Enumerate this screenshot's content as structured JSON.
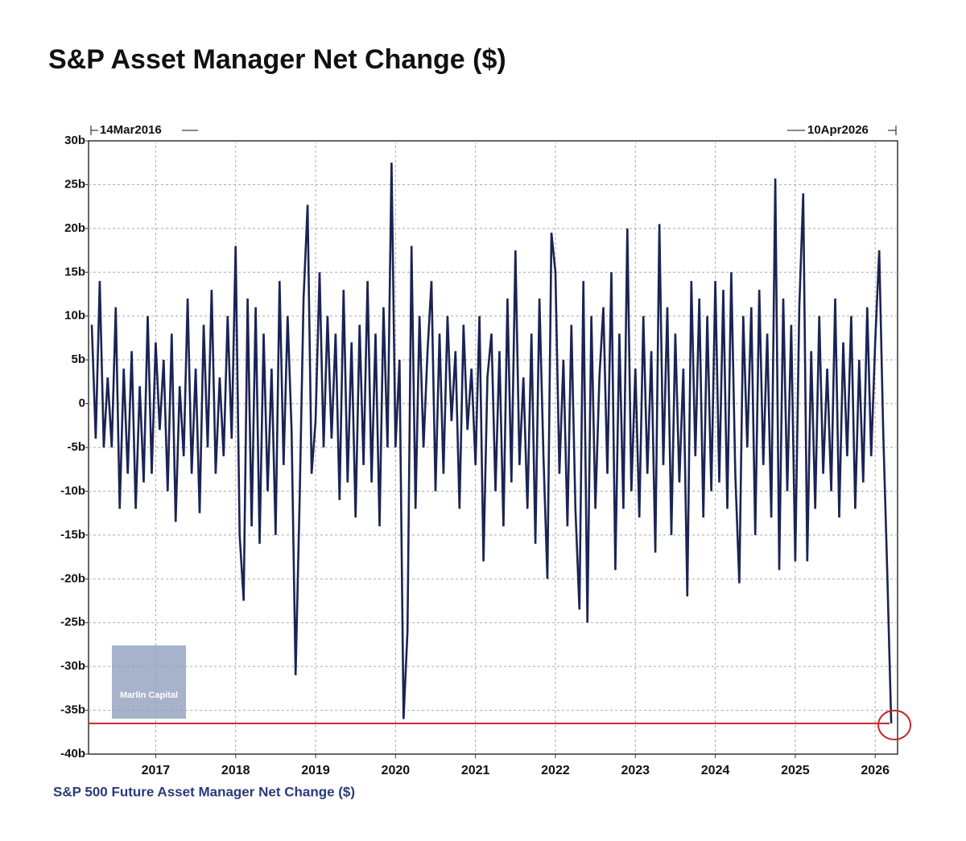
{
  "chart_data": {
    "type": "line",
    "title": "S&P Asset Manager Net Change ($)",
    "start_label": "14Mar2016",
    "end_label": "10Apr2026",
    "footer": "S&P 500 Future Asset Manager Net Change ($)",
    "watermark": "Marlin Capital",
    "color": "#1b2452",
    "reference_line": -36.5,
    "reference_color": "#c0272d",
    "grid": true,
    "xlim": [
      2016.16,
      2026.28
    ],
    "xticks": [
      2017,
      2018,
      2019,
      2020,
      2021,
      2022,
      2023,
      2024,
      2025,
      2026
    ],
    "ylim": [
      -40,
      30
    ],
    "yticks": [
      {
        "value": -40,
        "label": "-40b"
      },
      {
        "value": -35,
        "label": "-35b"
      },
      {
        "value": -30,
        "label": "-30b"
      },
      {
        "value": -25,
        "label": "-25b"
      },
      {
        "value": -20,
        "label": "-20b"
      },
      {
        "value": -15,
        "label": "-15b"
      },
      {
        "value": -10,
        "label": "-10b"
      },
      {
        "value": -5,
        "label": "-5b"
      },
      0,
      {
        "value": 5,
        "label": "5b"
      },
      {
        "value": 10,
        "label": "10b"
      },
      {
        "value": 15,
        "label": "15b"
      },
      {
        "value": 20,
        "label": "20b"
      },
      {
        "value": 25,
        "label": "25b"
      },
      {
        "value": 30,
        "label": "30b"
      }
    ],
    "x": [
      2016.2,
      2016.25,
      2016.3,
      2016.35,
      2016.4,
      2016.45,
      2016.5,
      2016.55,
      2016.6,
      2016.65,
      2016.7,
      2016.75,
      2016.8,
      2016.85,
      2016.9,
      2016.95,
      2017,
      2017.05,
      2017.1,
      2017.15,
      2017.2,
      2017.25,
      2017.3,
      2017.35,
      2017.4,
      2017.45,
      2017.5,
      2017.55,
      2017.6,
      2017.65,
      2017.7,
      2017.75,
      2017.8,
      2017.85,
      2017.9,
      2017.95,
      2018,
      2018.05,
      2018.1,
      2018.15,
      2018.2,
      2018.25,
      2018.3,
      2018.35,
      2018.4,
      2018.45,
      2018.5,
      2018.55,
      2018.6,
      2018.65,
      2018.7,
      2018.75,
      2018.8,
      2018.85,
      2018.9,
      2018.95,
      2019,
      2019.05,
      2019.1,
      2019.15,
      2019.2,
      2019.25,
      2019.3,
      2019.35,
      2019.4,
      2019.45,
      2019.5,
      2019.55,
      2019.6,
      2019.65,
      2019.7,
      2019.75,
      2019.8,
      2019.85,
      2019.9,
      2019.95,
      2020,
      2020.05,
      2020.1,
      2020.15,
      2020.2,
      2020.25,
      2020.3,
      2020.35,
      2020.4,
      2020.45,
      2020.5,
      2020.55,
      2020.6,
      2020.65,
      2020.7,
      2020.75,
      2020.8,
      2020.85,
      2020.9,
      2020.95,
      2021,
      2021.05,
      2021.1,
      2021.15,
      2021.2,
      2021.25,
      2021.3,
      2021.35,
      2021.4,
      2021.45,
      2021.5,
      2021.55,
      2021.6,
      2021.65,
      2021.7,
      2021.75,
      2021.8,
      2021.85,
      2021.9,
      2021.95,
      2022,
      2022.05,
      2022.1,
      2022.15,
      2022.2,
      2022.25,
      2022.3,
      2022.35,
      2022.4,
      2022.45,
      2022.5,
      2022.55,
      2022.6,
      2022.65,
      2022.7,
      2022.75,
      2022.8,
      2022.85,
      2022.9,
      2022.95,
      2023,
      2023.05,
      2023.1,
      2023.15,
      2023.2,
      2023.25,
      2023.3,
      2023.35,
      2023.4,
      2023.45,
      2023.5,
      2023.55,
      2023.6,
      2023.65,
      2023.7,
      2023.75,
      2023.8,
      2023.85,
      2023.9,
      2023.95,
      2024,
      2024.05,
      2024.1,
      2024.15,
      2024.2,
      2024.25,
      2024.3,
      2024.35,
      2024.4,
      2024.45,
      2024.5,
      2024.55,
      2024.6,
      2024.65,
      2024.7,
      2024.75,
      2024.8,
      2024.85,
      2024.9,
      2024.95,
      2025,
      2025.05,
      2025.1,
      2025.15,
      2025.2,
      2025.25,
      2025.3,
      2025.35,
      2025.4,
      2025.45,
      2025.5,
      2025.55,
      2025.6,
      2025.65,
      2025.7,
      2025.75,
      2025.8,
      2025.85,
      2025.9,
      2025.95,
      2026,
      2026.05,
      2026.1,
      2026.15,
      2026.2
    ],
    "values": [
      9,
      -4,
      14,
      -5,
      3,
      -5,
      11,
      -12,
      4,
      -8,
      6,
      -12,
      2,
      -9,
      10,
      -8,
      7,
      -3,
      5,
      -10,
      8,
      -13.5,
      2,
      -6,
      12,
      -8,
      4,
      -12.5,
      9,
      -5,
      13,
      -8,
      3,
      -6,
      10,
      -4,
      18,
      -15,
      -22.5,
      12,
      -14,
      11,
      -16,
      8,
      -10,
      4,
      -15,
      14,
      -7,
      10,
      -3,
      -31,
      -11,
      12,
      22.7,
      -8,
      -2,
      15,
      -5,
      10,
      -4,
      8,
      -11,
      13,
      -9,
      7,
      -13,
      9,
      -7,
      14,
      -9,
      8,
      -14,
      11,
      -5,
      27.5,
      -5,
      5,
      -36,
      -26,
      18,
      -12,
      10,
      -5,
      6,
      14,
      -10,
      8,
      -8,
      10,
      -2,
      6,
      -12,
      9,
      -3,
      4,
      -7,
      10,
      -18,
      3,
      8,
      -10,
      6,
      -14,
      12,
      -9,
      17.5,
      -7,
      3,
      -12,
      8,
      -16,
      12,
      -6,
      -20,
      19.5,
      15,
      -8,
      5,
      -14,
      9,
      -12,
      -23.5,
      14,
      -25,
      10,
      -12,
      3,
      11,
      -8,
      15,
      -19,
      8,
      -12,
      20,
      -10,
      4,
      -13,
      10,
      -8,
      6,
      -17,
      20.5,
      -7,
      11,
      -15,
      8,
      -9,
      4,
      -22,
      14,
      -6,
      12,
      -13,
      10,
      -10,
      14,
      -9,
      13,
      -12,
      15,
      -8,
      -20.5,
      10,
      -5,
      11,
      -15,
      13,
      -7,
      8,
      -13,
      25.7,
      -19,
      12,
      -10,
      9,
      -18,
      11,
      24,
      -18,
      6,
      -12,
      10,
      -8,
      4,
      -10,
      12,
      -13,
      7,
      -6,
      10,
      -12,
      5,
      -9,
      11,
      -6,
      7,
      17.5,
      -3,
      -19,
      -36.5
    ]
  }
}
